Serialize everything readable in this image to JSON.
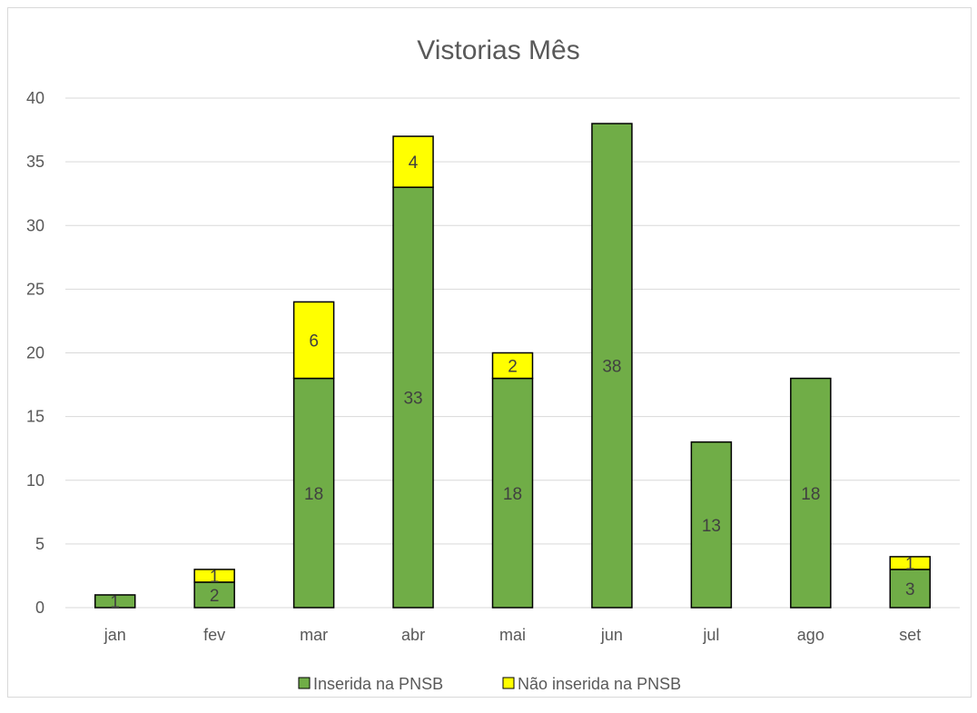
{
  "chart_data": {
    "type": "bar",
    "stacked": true,
    "title": "Vistorias Mês",
    "categories": [
      "jan",
      "fev",
      "mar",
      "abr",
      "mai",
      "jun",
      "jul",
      "ago",
      "set"
    ],
    "series": [
      {
        "name": "Inserida na PNSB",
        "color": "#70ad47",
        "values": [
          1,
          2,
          18,
          33,
          18,
          38,
          13,
          18,
          3
        ]
      },
      {
        "name": "Não inserida na PNSB",
        "color": "#ffff00",
        "values": [
          0,
          1,
          6,
          4,
          2,
          0,
          0,
          0,
          1
        ]
      }
    ],
    "data_labels": [
      [
        "1",
        "2",
        "18",
        "33",
        "18",
        "38",
        "13",
        "18",
        "3"
      ],
      [
        "",
        "1",
        "6",
        "4",
        "2",
        "",
        "",
        "",
        "1"
      ]
    ],
    "ylim": [
      0,
      40
    ],
    "yticks": [
      "0",
      "5",
      "10",
      "15",
      "20",
      "25",
      "30",
      "35",
      "40"
    ],
    "grid": true,
    "legend_position": "bottom",
    "xlabel": "",
    "ylabel": ""
  }
}
